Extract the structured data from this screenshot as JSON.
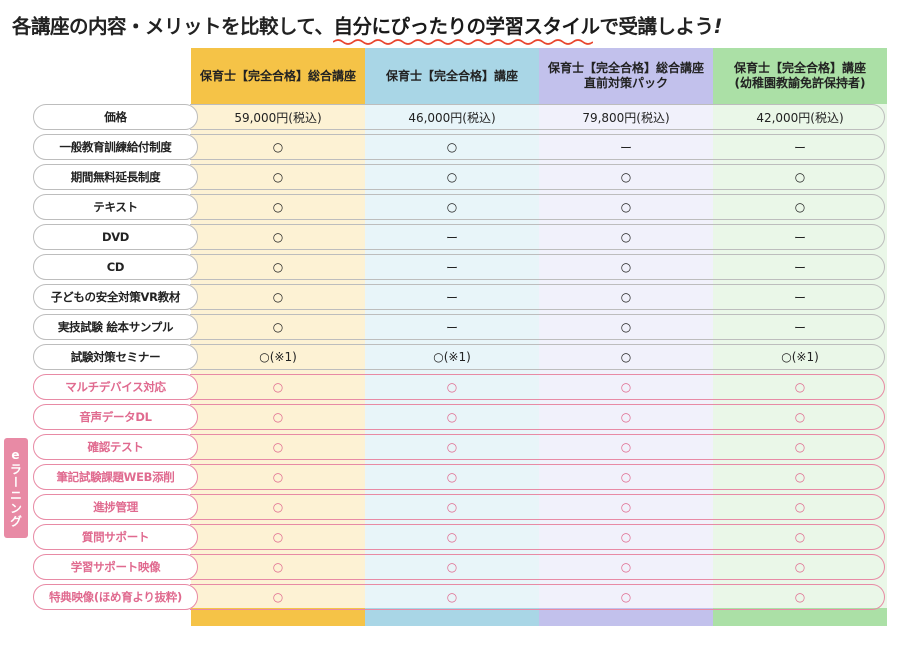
{
  "title": {
    "pre": "各講座の内容・メリットを比較して、",
    "emphasis": "自分にぴったりの学習スタイル",
    "post": "で受講しよう",
    "bang": "!"
  },
  "columns": [
    {
      "label_line1": "保育士【完全合格】総合講座",
      "label_line2": "",
      "color": "#f5c347",
      "light": "#fdf2d4"
    },
    {
      "label_line1": "保育士【完全合格】講座",
      "label_line2": "",
      "color": "#a9d6e6",
      "light": "#e8f5f9"
    },
    {
      "label_line1": "保育士【完全合格】総合講座",
      "label_line2": "直前対策パック",
      "color": "#c2c1ec",
      "light": "#f1f1fb"
    },
    {
      "label_line1": "保育士【完全合格】講座",
      "label_line2": "(幼稚園教諭免許保持者)",
      "color": "#abe0a6",
      "light": "#eaf7e8"
    }
  ],
  "elearning_label": "eラーニング",
  "rows": [
    {
      "label": "価格",
      "type": "std",
      "values": [
        "59,000円(税込)",
        "46,000円(税込)",
        "79,800円(税込)",
        "42,000円(税込)"
      ]
    },
    {
      "label": "一般教育訓練給付制度",
      "type": "std",
      "values": [
        "○",
        "○",
        "ー",
        "ー"
      ]
    },
    {
      "label": "期間無料延長制度",
      "type": "std",
      "values": [
        "○",
        "○",
        "○",
        "○"
      ]
    },
    {
      "label": "テキスト",
      "type": "std",
      "values": [
        "○",
        "○",
        "○",
        "○"
      ]
    },
    {
      "label": "DVD",
      "type": "std",
      "values": [
        "○",
        "ー",
        "○",
        "ー"
      ]
    },
    {
      "label": "CD",
      "type": "std",
      "values": [
        "○",
        "ー",
        "○",
        "ー"
      ]
    },
    {
      "label": "子どもの安全対策VR教材",
      "type": "std",
      "values": [
        "○",
        "ー",
        "○",
        "ー"
      ]
    },
    {
      "label": "実技試験 絵本サンプル",
      "type": "std",
      "values": [
        "○",
        "ー",
        "○",
        "ー"
      ]
    },
    {
      "label": "試験対策セミナー",
      "type": "std",
      "values": [
        "○(※1)",
        "○(※1)",
        "○",
        "○(※1)"
      ]
    },
    {
      "label": "マルチデバイス対応",
      "type": "el",
      "values": [
        "○",
        "○",
        "○",
        "○"
      ]
    },
    {
      "label": "音声データDL",
      "type": "el",
      "values": [
        "○",
        "○",
        "○",
        "○"
      ]
    },
    {
      "label": "確認テスト",
      "type": "el",
      "values": [
        "○",
        "○",
        "○",
        "○"
      ]
    },
    {
      "label": "筆記試験課題WEB添削",
      "type": "el",
      "values": [
        "○",
        "○",
        "○",
        "○"
      ]
    },
    {
      "label": "進捗管理",
      "type": "el",
      "values": [
        "○",
        "○",
        "○",
        "○"
      ]
    },
    {
      "label": "質問サポート",
      "type": "el",
      "values": [
        "○",
        "○",
        "○",
        "○"
      ]
    },
    {
      "label": "学習サポート映像",
      "type": "el",
      "values": [
        "○",
        "○",
        "○",
        "○"
      ]
    },
    {
      "label": "特典映像(ほめ育より抜粋)",
      "type": "el",
      "values": [
        "○",
        "○",
        "○",
        "○"
      ]
    }
  ]
}
